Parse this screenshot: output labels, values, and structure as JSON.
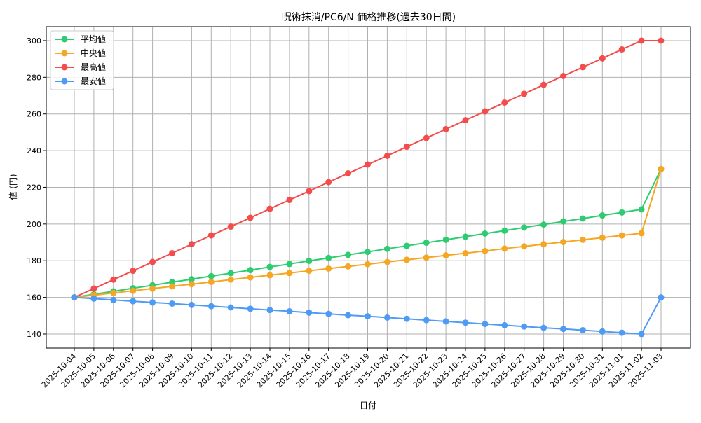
{
  "chart_data": {
    "type": "line",
    "title": "呪術抹消/PC6/N 価格推移(過去30日間)",
    "xlabel": "日付",
    "ylabel": "値 (円)",
    "ylim": [
      132.5,
      308
    ],
    "yticks": [
      140,
      160,
      180,
      200,
      220,
      240,
      260,
      280,
      300
    ],
    "grid": true,
    "legend_position": "upper left",
    "categories": [
      "2025-10-04",
      "2025-10-05",
      "2025-10-06",
      "2025-10-07",
      "2025-10-08",
      "2025-10-09",
      "2025-10-10",
      "2025-10-11",
      "2025-10-12",
      "2025-10-13",
      "2025-10-14",
      "2025-10-15",
      "2025-10-16",
      "2025-10-17",
      "2025-10-18",
      "2025-10-19",
      "2025-10-20",
      "2025-10-21",
      "2025-10-22",
      "2025-10-23",
      "2025-10-24",
      "2025-10-25",
      "2025-10-26",
      "2025-10-27",
      "2025-10-28",
      "2025-10-29",
      "2025-10-30",
      "2025-10-31",
      "2025-11-01",
      "2025-11-02",
      "2025-11-03"
    ],
    "series": [
      {
        "name": "平均値",
        "color": "#2ecc71",
        "values": [
          160,
          161.7,
          163.3,
          165.0,
          166.6,
          168.3,
          169.9,
          171.6,
          173.2,
          174.9,
          176.6,
          178.2,
          179.9,
          181.5,
          183.2,
          184.8,
          186.5,
          188.1,
          189.8,
          191.4,
          193.1,
          194.8,
          196.4,
          198.1,
          199.7,
          201.4,
          203.0,
          204.7,
          206.3,
          208,
          230
        ]
      },
      {
        "name": "中央値",
        "color": "#f5a623",
        "values": [
          160,
          161.2,
          162.4,
          163.6,
          164.8,
          166.0,
          167.2,
          168.4,
          169.7,
          170.9,
          172.1,
          173.3,
          174.5,
          175.7,
          176.9,
          178.1,
          179.3,
          180.5,
          181.7,
          182.9,
          184.1,
          185.3,
          186.6,
          187.8,
          189.0,
          190.2,
          191.4,
          192.6,
          193.8,
          195,
          230
        ]
      },
      {
        "name": "最高値",
        "color": "#f44c4c",
        "values": [
          160,
          164.8,
          169.7,
          174.5,
          179.3,
          184.1,
          189.0,
          193.8,
          198.6,
          203.4,
          208.3,
          213.1,
          217.9,
          222.8,
          227.6,
          232.4,
          237.2,
          242.1,
          246.9,
          251.7,
          256.6,
          261.4,
          266.2,
          271.0,
          275.9,
          280.7,
          285.5,
          290.3,
          295.2,
          300,
          300
        ]
      },
      {
        "name": "最安値",
        "color": "#4d9bf5",
        "values": [
          160,
          159.3,
          158.6,
          157.9,
          157.2,
          156.6,
          155.9,
          155.2,
          154.5,
          153.8,
          153.1,
          152.4,
          151.7,
          151.0,
          150.3,
          149.7,
          149.0,
          148.3,
          147.6,
          146.9,
          146.2,
          145.5,
          144.8,
          144.1,
          143.4,
          142.8,
          142.1,
          141.4,
          140.7,
          140,
          160
        ]
      }
    ]
  }
}
